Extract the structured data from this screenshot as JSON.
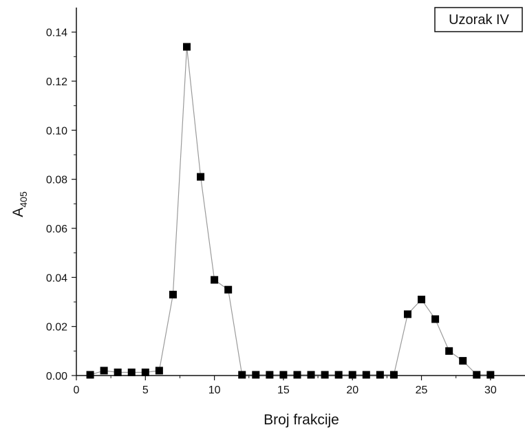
{
  "chart_data": {
    "type": "line",
    "title": "",
    "xlabel": "Broj frakcije",
    "ylabel": "A",
    "ylabel_sub": "405",
    "legend_label": "Uzorak IV",
    "legend_position": "top-right",
    "xlim": [
      0,
      32.5
    ],
    "ylim": [
      0,
      0.15
    ],
    "x_ticks": [
      0,
      5,
      10,
      15,
      20,
      25,
      30
    ],
    "x_tick_labels": [
      "0",
      "5",
      "10",
      "15",
      "20",
      "25",
      "30"
    ],
    "y_ticks": [
      0,
      0.02,
      0.04,
      0.06,
      0.08,
      0.1,
      0.12,
      0.14
    ],
    "y_tick_labels": [
      "0.00",
      "0.02",
      "0.04",
      "0.06",
      "0.08",
      "0.10",
      "0.12",
      "0.14"
    ],
    "grid": false,
    "marker": "square",
    "line_color": "#9a9a9a",
    "marker_color": "#000000",
    "series": [
      {
        "x": [
          1,
          2,
          3,
          4,
          5,
          6,
          7,
          8,
          9,
          10,
          11,
          12,
          13,
          14,
          15,
          16,
          17,
          18,
          19,
          20,
          21,
          22,
          23,
          24,
          25,
          26,
          27,
          28,
          29,
          30
        ],
        "values": [
          0.0003,
          0.002,
          0.0013,
          0.0013,
          0.0013,
          0.002,
          0.033,
          0.134,
          0.081,
          0.039,
          0.035,
          0.0003,
          0.0003,
          0.0003,
          0.0003,
          0.0003,
          0.0003,
          0.0003,
          0.0003,
          0.0003,
          0.0003,
          0.0003,
          0.0003,
          0.025,
          0.031,
          0.023,
          0.01,
          0.006,
          0.0003,
          0.0003
        ]
      }
    ]
  }
}
